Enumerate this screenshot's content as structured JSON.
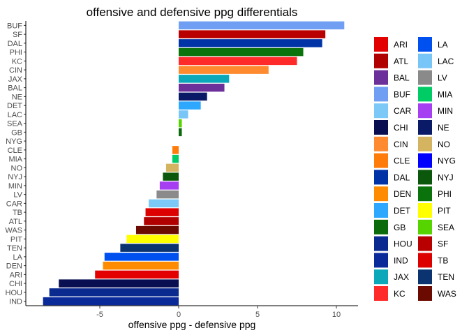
{
  "chart_data": {
    "type": "bar",
    "orientation": "horizontal",
    "title": "offensive and defensive ppg differentials",
    "xlabel": "offensive ppg - defensive ppg",
    "ylabel": "",
    "xlim": [
      -8.6,
      11.2
    ],
    "xticks": [
      -5,
      0,
      5,
      10
    ],
    "grid": false,
    "legend_position": "right",
    "legend_columns": 2,
    "categories": [
      "BUF",
      "SF",
      "DAL",
      "PHI",
      "KC",
      "CIN",
      "JAX",
      "BAL",
      "NE",
      "DET",
      "LAC",
      "SEA",
      "GB",
      "NYG",
      "CLE",
      "MIA",
      "NO",
      "NYJ",
      "MIN",
      "LV",
      "CAR",
      "TB",
      "ATL",
      "WAS",
      "PIT",
      "TEN",
      "LA",
      "DEN",
      "ARI",
      "CHI",
      "HOU",
      "IND"
    ],
    "values": [
      10.5,
      9.3,
      9.1,
      7.9,
      7.5,
      5.7,
      3.2,
      2.9,
      1.8,
      1.4,
      0.6,
      0.2,
      0.2,
      0.0,
      -0.4,
      -0.4,
      -0.8,
      -1.0,
      -1.2,
      -1.4,
      -1.9,
      -2.1,
      -2.2,
      -2.7,
      -3.3,
      -3.7,
      -4.7,
      -4.8,
      -5.3,
      -7.6,
      -8.2,
      -8.6
    ],
    "legend": {
      "col1": [
        "ARI",
        "ATL",
        "BAL",
        "BUF",
        "CAR",
        "CHI",
        "CIN",
        "CLE",
        "DAL",
        "DEN",
        "DET",
        "GB",
        "HOU",
        "IND",
        "JAX",
        "KC"
      ],
      "col2": [
        "LA",
        "LAC",
        "LV",
        "MIA",
        "MIN",
        "NE",
        "NO",
        "NYG",
        "NYJ",
        "PHI",
        "PIT",
        "SEA",
        "SF",
        "TB",
        "TEN",
        "WAS"
      ]
    },
    "colors": {
      "ARI": "#e30000",
      "ATL": "#b00000",
      "BAL": "#6b3099",
      "BUF": "#6f9ef2",
      "CAR": "#7cc8f7",
      "CHI": "#0a0f52",
      "CIN": "#ff8a30",
      "CLE": "#ff7b0a",
      "DAL": "#0033a6",
      "DEN": "#ff8c00",
      "DET": "#2ea8ff",
      "GB": "#0b6b0b",
      "HOU": "#0a2a8f",
      "IND": "#0a2a9a",
      "JAX": "#0aa8b8",
      "KC": "#ff2a2a",
      "LA": "#0050f0",
      "LAC": "#78c5f7",
      "LV": "#8a8a8a",
      "MIA": "#00cc66",
      "MIN": "#a63ef2",
      "NE": "#0a1a66",
      "NO": "#d4b461",
      "NYG": "#0000ff",
      "NYJ": "#0b570b",
      "PHI": "#0b730b",
      "PIT": "#ffff00",
      "SEA": "#55d400",
      "SF": "#b80000",
      "TB": "#dd0000",
      "TEN": "#0a3370",
      "WAS": "#6b0a00"
    }
  }
}
